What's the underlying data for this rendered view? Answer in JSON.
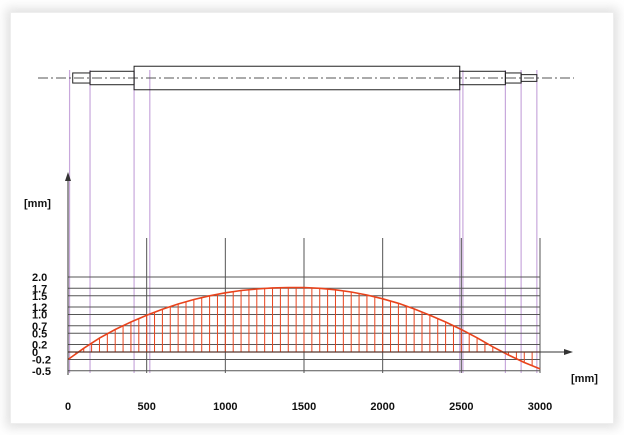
{
  "chart_data": {
    "type": "line",
    "title": "",
    "xlabel": "[mm]",
    "ylabel": "[mm]",
    "xlim": [
      0,
      3000
    ],
    "ylim": [
      -0.5,
      2.0
    ],
    "x_ticks": [
      {
        "value": 0,
        "label": "0"
      },
      {
        "value": 500,
        "label": "500"
      },
      {
        "value": 1000,
        "label": "1000"
      },
      {
        "value": 1500,
        "label": "1500"
      },
      {
        "value": 2000,
        "label": "2000"
      },
      {
        "value": 2500,
        "label": "2500"
      },
      {
        "value": 3000,
        "label": "3000"
      }
    ],
    "y_ticks": [
      {
        "value": 2.0,
        "label": "2.0"
      },
      {
        "value": 1.7,
        "label": "1.7"
      },
      {
        "value": 1.5,
        "label": "1.5"
      },
      {
        "value": 1.2,
        "label": "1.2"
      },
      {
        "value": 1.0,
        "label": "1.0"
      },
      {
        "value": 0.7,
        "label": "0.7"
      },
      {
        "value": 0.5,
        "label": "0.5"
      },
      {
        "value": 0.2,
        "label": "0.2"
      },
      {
        "value": 0.0,
        "label": "0"
      },
      {
        "value": -0.2,
        "label": "-0.2"
      },
      {
        "value": -0.5,
        "label": "-0.5"
      }
    ],
    "grid": true,
    "series": [
      {
        "x": [
          0,
          100,
          200,
          300,
          400,
          500,
          600,
          700,
          800,
          900,
          1000,
          1100,
          1200,
          1300,
          1400,
          1500,
          1600,
          1700,
          1800,
          1900,
          2000,
          2100,
          2200,
          2300,
          2400,
          2500,
          2600,
          2700,
          2800,
          2900,
          3000
        ],
        "values": [
          -0.2,
          0.1,
          0.37,
          0.6,
          0.8,
          0.98,
          1.14,
          1.28,
          1.4,
          1.5,
          1.58,
          1.64,
          1.68,
          1.71,
          1.72,
          1.72,
          1.7,
          1.66,
          1.6,
          1.52,
          1.42,
          1.3,
          1.15,
          0.98,
          0.8,
          0.6,
          0.38,
          0.14,
          -0.08,
          -0.28,
          -0.45
        ]
      }
    ],
    "section_lines_x": [
      10,
      140,
      420,
      520,
      2490,
      2510,
      2780,
      2880,
      2980
    ],
    "shaft_segments": [
      {
        "x0": 30,
        "x1": 140,
        "half_height": 0.18
      },
      {
        "x0": 140,
        "x1": 420,
        "half_height": 0.24
      },
      {
        "x0": 420,
        "x1": 2490,
        "half_height": 0.42
      },
      {
        "x0": 2490,
        "x1": 2780,
        "half_height": 0.24
      },
      {
        "x0": 2780,
        "x1": 2880,
        "half_height": 0.18
      },
      {
        "x0": 2880,
        "x1": 2980,
        "half_height": 0.12
      }
    ],
    "colors": {
      "curve": "#e8431c",
      "grid": "#555555",
      "section_line": "#c8a8dc",
      "shaft": "#222222",
      "centerline": "#555555"
    }
  }
}
